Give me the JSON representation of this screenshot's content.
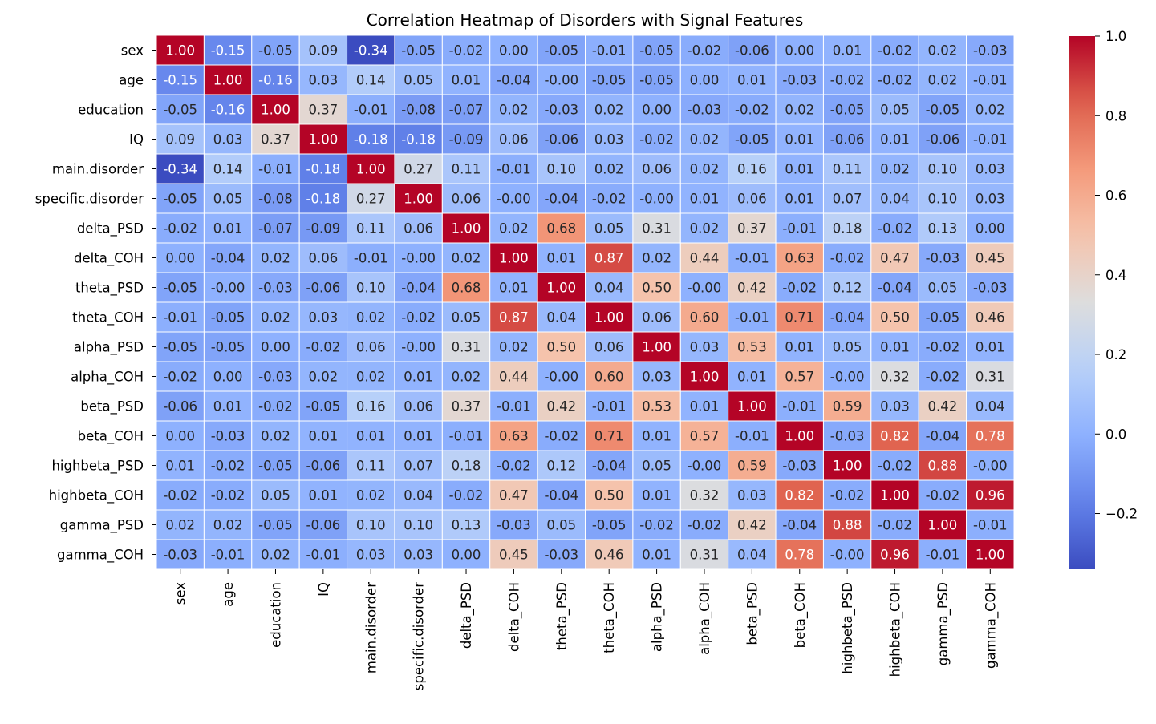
{
  "chart_data": {
    "type": "heatmap",
    "title": "Correlation Heatmap of Disorders with Signal Features",
    "xlabel": "",
    "ylabel": "",
    "colormap": "coolwarm",
    "value_format": "0.00",
    "labels": [
      "sex",
      "age",
      "education",
      "IQ",
      "main.disorder",
      "specific.disorder",
      "delta_PSD",
      "delta_COH",
      "theta_PSD",
      "theta_COH",
      "alpha_PSD",
      "alpha_COH",
      "beta_PSD",
      "beta_COH",
      "highbeta_PSD",
      "highbeta_COH",
      "gamma_PSD",
      "gamma_COH"
    ],
    "matrix": [
      [
        1.0,
        -0.15,
        -0.05,
        0.09,
        -0.34,
        -0.05,
        -0.02,
        0.0,
        -0.05,
        -0.01,
        -0.05,
        -0.02,
        -0.06,
        0.0,
        0.01,
        -0.02,
        0.02,
        -0.03
      ],
      [
        -0.15,
        1.0,
        -0.16,
        0.03,
        0.14,
        0.05,
        0.01,
        -0.04,
        -0.0,
        -0.05,
        -0.05,
        0.0,
        0.01,
        -0.03,
        -0.02,
        -0.02,
        0.02,
        -0.01
      ],
      [
        -0.05,
        -0.16,
        1.0,
        0.37,
        -0.01,
        -0.08,
        -0.07,
        0.02,
        -0.03,
        0.02,
        0.0,
        -0.03,
        -0.02,
        0.02,
        -0.05,
        0.05,
        -0.05,
        0.02
      ],
      [
        0.09,
        0.03,
        0.37,
        1.0,
        -0.18,
        -0.18,
        -0.09,
        0.06,
        -0.06,
        0.03,
        -0.02,
        0.02,
        -0.05,
        0.01,
        -0.06,
        0.01,
        -0.06,
        -0.01
      ],
      [
        -0.34,
        0.14,
        -0.01,
        -0.18,
        1.0,
        0.27,
        0.11,
        -0.01,
        0.1,
        0.02,
        0.06,
        0.02,
        0.16,
        0.01,
        0.11,
        0.02,
        0.1,
        0.03
      ],
      [
        -0.05,
        0.05,
        -0.08,
        -0.18,
        0.27,
        1.0,
        0.06,
        -0.0,
        -0.04,
        -0.02,
        -0.0,
        0.01,
        0.06,
        0.01,
        0.07,
        0.04,
        0.1,
        0.03
      ],
      [
        -0.02,
        0.01,
        -0.07,
        -0.09,
        0.11,
        0.06,
        1.0,
        0.02,
        0.68,
        0.05,
        0.31,
        0.02,
        0.37,
        -0.01,
        0.18,
        -0.02,
        0.13,
        0.0
      ],
      [
        0.0,
        -0.04,
        0.02,
        0.06,
        -0.01,
        -0.0,
        0.02,
        1.0,
        0.01,
        0.87,
        0.02,
        0.44,
        -0.01,
        0.63,
        -0.02,
        0.47,
        -0.03,
        0.45
      ],
      [
        -0.05,
        -0.0,
        -0.03,
        -0.06,
        0.1,
        -0.04,
        0.68,
        0.01,
        1.0,
        0.04,
        0.5,
        -0.0,
        0.42,
        -0.02,
        0.12,
        -0.04,
        0.05,
        -0.03
      ],
      [
        -0.01,
        -0.05,
        0.02,
        0.03,
        0.02,
        -0.02,
        0.05,
        0.87,
        0.04,
        1.0,
        0.06,
        0.6,
        -0.01,
        0.71,
        -0.04,
        0.5,
        -0.05,
        0.46
      ],
      [
        -0.05,
        -0.05,
        0.0,
        -0.02,
        0.06,
        -0.0,
        0.31,
        0.02,
        0.5,
        0.06,
        1.0,
        0.03,
        0.53,
        0.01,
        0.05,
        0.01,
        -0.02,
        0.01
      ],
      [
        -0.02,
        0.0,
        -0.03,
        0.02,
        0.02,
        0.01,
        0.02,
        0.44,
        -0.0,
        0.6,
        0.03,
        1.0,
        0.01,
        0.57,
        -0.0,
        0.32,
        -0.02,
        0.31
      ],
      [
        -0.06,
        0.01,
        -0.02,
        -0.05,
        0.16,
        0.06,
        0.37,
        -0.01,
        0.42,
        -0.01,
        0.53,
        0.01,
        1.0,
        -0.01,
        0.59,
        0.03,
        0.42,
        0.04
      ],
      [
        0.0,
        -0.03,
        0.02,
        0.01,
        0.01,
        0.01,
        -0.01,
        0.63,
        -0.02,
        0.71,
        0.01,
        0.57,
        -0.01,
        1.0,
        -0.03,
        0.82,
        -0.04,
        0.78
      ],
      [
        0.01,
        -0.02,
        -0.05,
        -0.06,
        0.11,
        0.07,
        0.18,
        -0.02,
        0.12,
        -0.04,
        0.05,
        -0.0,
        0.59,
        -0.03,
        1.0,
        -0.02,
        0.88,
        -0.0
      ],
      [
        -0.02,
        -0.02,
        0.05,
        0.01,
        0.02,
        0.04,
        -0.02,
        0.47,
        -0.04,
        0.5,
        0.01,
        0.32,
        0.03,
        0.82,
        -0.02,
        1.0,
        -0.02,
        0.96
      ],
      [
        0.02,
        0.02,
        -0.05,
        -0.06,
        0.1,
        0.1,
        0.13,
        -0.03,
        0.05,
        -0.05,
        -0.02,
        -0.02,
        0.42,
        -0.04,
        0.88,
        -0.02,
        1.0,
        -0.01
      ],
      [
        -0.03,
        -0.01,
        0.02,
        -0.01,
        0.03,
        0.03,
        0.0,
        0.45,
        -0.03,
        0.46,
        0.01,
        0.31,
        0.04,
        0.78,
        -0.0,
        0.96,
        -0.01,
        1.0
      ]
    ],
    "display_text": [
      [
        "1.00",
        "-0.15",
        "-0.05",
        "0.09",
        "-0.34",
        "-0.05",
        "-0.02",
        "0.00",
        "-0.05",
        "-0.01",
        "-0.05",
        "-0.02",
        "-0.06",
        "0.00",
        "0.01",
        "-0.02",
        "0.02",
        "-0.03"
      ],
      [
        "-0.15",
        "1.00",
        "-0.16",
        "0.03",
        "0.14",
        "0.05",
        "0.01",
        "-0.04",
        "-0.00",
        "-0.05",
        "-0.05",
        "0.00",
        "0.01",
        "-0.03",
        "-0.02",
        "-0.02",
        "0.02",
        "-0.01"
      ],
      [
        "-0.05",
        "-0.16",
        "1.00",
        "0.37",
        "-0.01",
        "-0.08",
        "-0.07",
        "0.02",
        "-0.03",
        "0.02",
        "0.00",
        "-0.03",
        "-0.02",
        "0.02",
        "-0.05",
        "0.05",
        "-0.05",
        "0.02"
      ],
      [
        "0.09",
        "0.03",
        "0.37",
        "1.00",
        "-0.18",
        "-0.18",
        "-0.09",
        "0.06",
        "-0.06",
        "0.03",
        "-0.02",
        "0.02",
        "-0.05",
        "0.01",
        "-0.06",
        "0.01",
        "-0.06",
        "-0.01"
      ],
      [
        "-0.34",
        "0.14",
        "-0.01",
        "-0.18",
        "1.00",
        "0.27",
        "0.11",
        "-0.01",
        "0.10",
        "0.02",
        "0.06",
        "0.02",
        "0.16",
        "0.01",
        "0.11",
        "0.02",
        "0.10",
        "0.03"
      ],
      [
        "-0.05",
        "0.05",
        "-0.08",
        "-0.18",
        "0.27",
        "1.00",
        "0.06",
        "-0.00",
        "-0.04",
        "-0.02",
        "-0.00",
        "0.01",
        "0.06",
        "0.01",
        "0.07",
        "0.04",
        "0.10",
        "0.03"
      ],
      [
        "-0.02",
        "0.01",
        "-0.07",
        "-0.09",
        "0.11",
        "0.06",
        "1.00",
        "0.02",
        "0.68",
        "0.05",
        "0.31",
        "0.02",
        "0.37",
        "-0.01",
        "0.18",
        "-0.02",
        "0.13",
        "0.00"
      ],
      [
        "0.00",
        "-0.04",
        "0.02",
        "0.06",
        "-0.01",
        "-0.00",
        "0.02",
        "1.00",
        "0.01",
        "0.87",
        "0.02",
        "0.44",
        "-0.01",
        "0.63",
        "-0.02",
        "0.47",
        "-0.03",
        "0.45"
      ],
      [
        "-0.05",
        "-0.00",
        "-0.03",
        "-0.06",
        "0.10",
        "-0.04",
        "0.68",
        "0.01",
        "1.00",
        "0.04",
        "0.50",
        "-0.00",
        "0.42",
        "-0.02",
        "0.12",
        "-0.04",
        "0.05",
        "-0.03"
      ],
      [
        "-0.01",
        "-0.05",
        "0.02",
        "0.03",
        "0.02",
        "-0.02",
        "0.05",
        "0.87",
        "0.04",
        "1.00",
        "0.06",
        "0.60",
        "-0.01",
        "0.71",
        "-0.04",
        "0.50",
        "-0.05",
        "0.46"
      ],
      [
        "-0.05",
        "-0.05",
        "0.00",
        "-0.02",
        "0.06",
        "-0.00",
        "0.31",
        "0.02",
        "0.50",
        "0.06",
        "1.00",
        "0.03",
        "0.53",
        "0.01",
        "0.05",
        "0.01",
        "-0.02",
        "0.01"
      ],
      [
        "-0.02",
        "0.00",
        "-0.03",
        "0.02",
        "0.02",
        "0.01",
        "0.02",
        "0.44",
        "-0.00",
        "0.60",
        "0.03",
        "1.00",
        "0.01",
        "0.57",
        "-0.00",
        "0.32",
        "-0.02",
        "0.31"
      ],
      [
        "-0.06",
        "0.01",
        "-0.02",
        "-0.05",
        "0.16",
        "0.06",
        "0.37",
        "-0.01",
        "0.42",
        "-0.01",
        "0.53",
        "0.01",
        "1.00",
        "-0.01",
        "0.59",
        "0.03",
        "0.42",
        "0.04"
      ],
      [
        "0.00",
        "-0.03",
        "0.02",
        "0.01",
        "0.01",
        "0.01",
        "-0.01",
        "0.63",
        "-0.02",
        "0.71",
        "0.01",
        "0.57",
        "-0.01",
        "1.00",
        "-0.03",
        "0.82",
        "-0.04",
        "0.78"
      ],
      [
        "0.01",
        "-0.02",
        "-0.05",
        "-0.06",
        "0.11",
        "0.07",
        "0.18",
        "-0.02",
        "0.12",
        "-0.04",
        "0.05",
        "-0.00",
        "0.59",
        "-0.03",
        "1.00",
        "-0.02",
        "0.88",
        "-0.00"
      ],
      [
        "-0.02",
        "-0.02",
        "0.05",
        "0.01",
        "0.02",
        "0.04",
        "-0.02",
        "0.47",
        "-0.04",
        "0.50",
        "0.01",
        "0.32",
        "0.03",
        "0.82",
        "-0.02",
        "1.00",
        "-0.02",
        "0.96"
      ],
      [
        "0.02",
        "0.02",
        "-0.05",
        "-0.06",
        "0.10",
        "0.10",
        "0.13",
        "-0.03",
        "0.05",
        "-0.05",
        "-0.02",
        "-0.02",
        "0.42",
        "-0.04",
        "0.88",
        "-0.02",
        "1.00",
        "-0.01"
      ],
      [
        "-0.03",
        "-0.01",
        "0.02",
        "-0.01",
        "0.03",
        "0.03",
        "0.00",
        "0.45",
        "-0.03",
        "0.46",
        "0.01",
        "0.31",
        "0.04",
        "0.78",
        "-0.00",
        "0.96",
        "-0.01",
        "1.00"
      ]
    ],
    "vmin": -0.34,
    "vmax": 1.0,
    "colorbar": {
      "ticks": [
        -0.2,
        0.0,
        0.2,
        0.4,
        0.6,
        0.8,
        1.0
      ],
      "tick_labels": [
        "−0.2",
        "0.0",
        "0.2",
        "0.4",
        "0.6",
        "0.8",
        "1.0"
      ],
      "placement": "right"
    },
    "grid": false,
    "cell_separator_color": "#ffffff"
  }
}
